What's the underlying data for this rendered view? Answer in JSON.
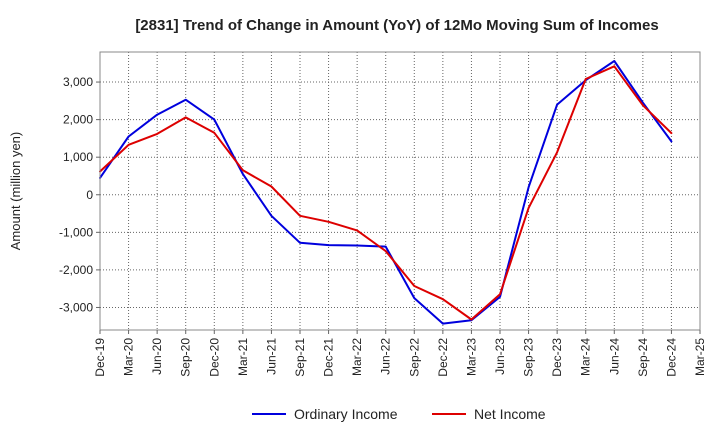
{
  "chart_data": {
    "type": "line",
    "title": "[2831]  Trend of Change in Amount (YoY) of 12Mo Moving Sum of Incomes",
    "xlabel": "",
    "ylabel": "Amount (million yen)",
    "ylim": [
      -3600,
      3800
    ],
    "yticks": [
      3000,
      2000,
      1000,
      0,
      -1000,
      -2000,
      -3000
    ],
    "ytick_labels": [
      "3,000",
      "2,000",
      "1,000",
      "0",
      "-1,000",
      "-2,000",
      "-3,000"
    ],
    "grid": true,
    "legend_position": "bottom-center",
    "categories": [
      "Dec-19",
      "Mar-20",
      "Jun-20",
      "Sep-20",
      "Dec-20",
      "Mar-21",
      "Jun-21",
      "Sep-21",
      "Dec-21",
      "Mar-22",
      "Jun-22",
      "Sep-22",
      "Dec-22",
      "Mar-23",
      "Jun-23",
      "Sep-23",
      "Dec-23",
      "Mar-24",
      "Jun-24",
      "Sep-24",
      "Dec-24",
      "Mar-25"
    ],
    "series": [
      {
        "name": "Ordinary Income",
        "color": "#0000dd",
        "values": [
          450,
          1550,
          2130,
          2530,
          2000,
          550,
          -560,
          -1280,
          -1340,
          -1350,
          -1380,
          -2750,
          -3430,
          -3340,
          -2720,
          200,
          2400,
          3050,
          3560,
          2450,
          1420,
          null
        ]
      },
      {
        "name": "Net Income",
        "color": "#dd0000",
        "values": [
          620,
          1330,
          1620,
          2060,
          1650,
          650,
          220,
          -560,
          -720,
          -950,
          -1500,
          -2430,
          -2780,
          -3320,
          -2650,
          -350,
          1130,
          3080,
          3420,
          2380,
          1640,
          null
        ]
      }
    ]
  }
}
